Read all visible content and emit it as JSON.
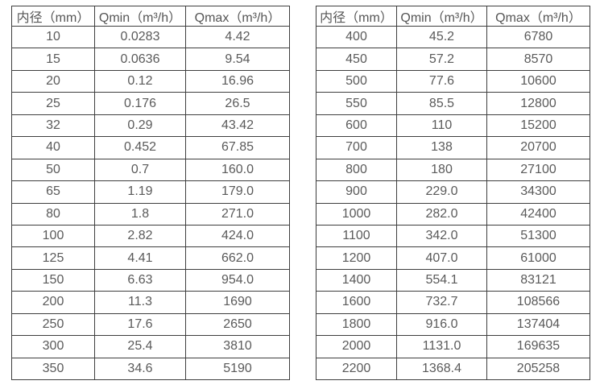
{
  "colors": {
    "background": "#ffffff",
    "table_border": "#3e3e3e",
    "text": "#595959"
  },
  "chart_data": [
    {
      "type": "table",
      "name": "flow-rate-table-small-diameters",
      "headers": [
        "内径（mm）",
        "Qmin（m³/h）",
        "Qmax（m³/h）"
      ],
      "rows": [
        [
          "10",
          "0.0283",
          "4.42"
        ],
        [
          "15",
          "0.0636",
          "9.54"
        ],
        [
          "20",
          "0.12",
          "16.96"
        ],
        [
          "25",
          "0.176",
          "26.5"
        ],
        [
          "32",
          "0.29",
          "43.42"
        ],
        [
          "40",
          "0.452",
          "67.85"
        ],
        [
          "50",
          "0.7",
          "160.0"
        ],
        [
          "65",
          "1.19",
          "179.0"
        ],
        [
          "80",
          "1.8",
          "271.0"
        ],
        [
          "100",
          "2.82",
          "424.0"
        ],
        [
          "125",
          "4.41",
          "662.0"
        ],
        [
          "150",
          "6.63",
          "954.0"
        ],
        [
          "200",
          "11.3",
          "1690"
        ],
        [
          "250",
          "17.6",
          "2650"
        ],
        [
          "300",
          "25.4",
          "3810"
        ],
        [
          "350",
          "34.6",
          "5190"
        ]
      ]
    },
    {
      "type": "table",
      "name": "flow-rate-table-large-diameters",
      "headers": [
        "内径（mm）",
        "Qmin（m³/h）",
        "Qmax（m³/h）"
      ],
      "rows": [
        [
          "400",
          "45.2",
          "6780"
        ],
        [
          "450",
          "57.2",
          "8570"
        ],
        [
          "500",
          "77.6",
          "10600"
        ],
        [
          "550",
          "85.5",
          "12800"
        ],
        [
          "600",
          "110",
          "15200"
        ],
        [
          "700",
          "138",
          "20700"
        ],
        [
          "800",
          "180",
          "27100"
        ],
        [
          "900",
          "229.0",
          "34300"
        ],
        [
          "1000",
          "282.0",
          "42400"
        ],
        [
          "1100",
          "342.0",
          "51300"
        ],
        [
          "1200",
          "407.0",
          "61000"
        ],
        [
          "1400",
          "554.1",
          "83121"
        ],
        [
          "1600",
          "732.7",
          "108566"
        ],
        [
          "1800",
          "916.0",
          "137404"
        ],
        [
          "2000",
          "1131.0",
          "169635"
        ],
        [
          "2200",
          "1368.4",
          "205258"
        ]
      ]
    }
  ]
}
